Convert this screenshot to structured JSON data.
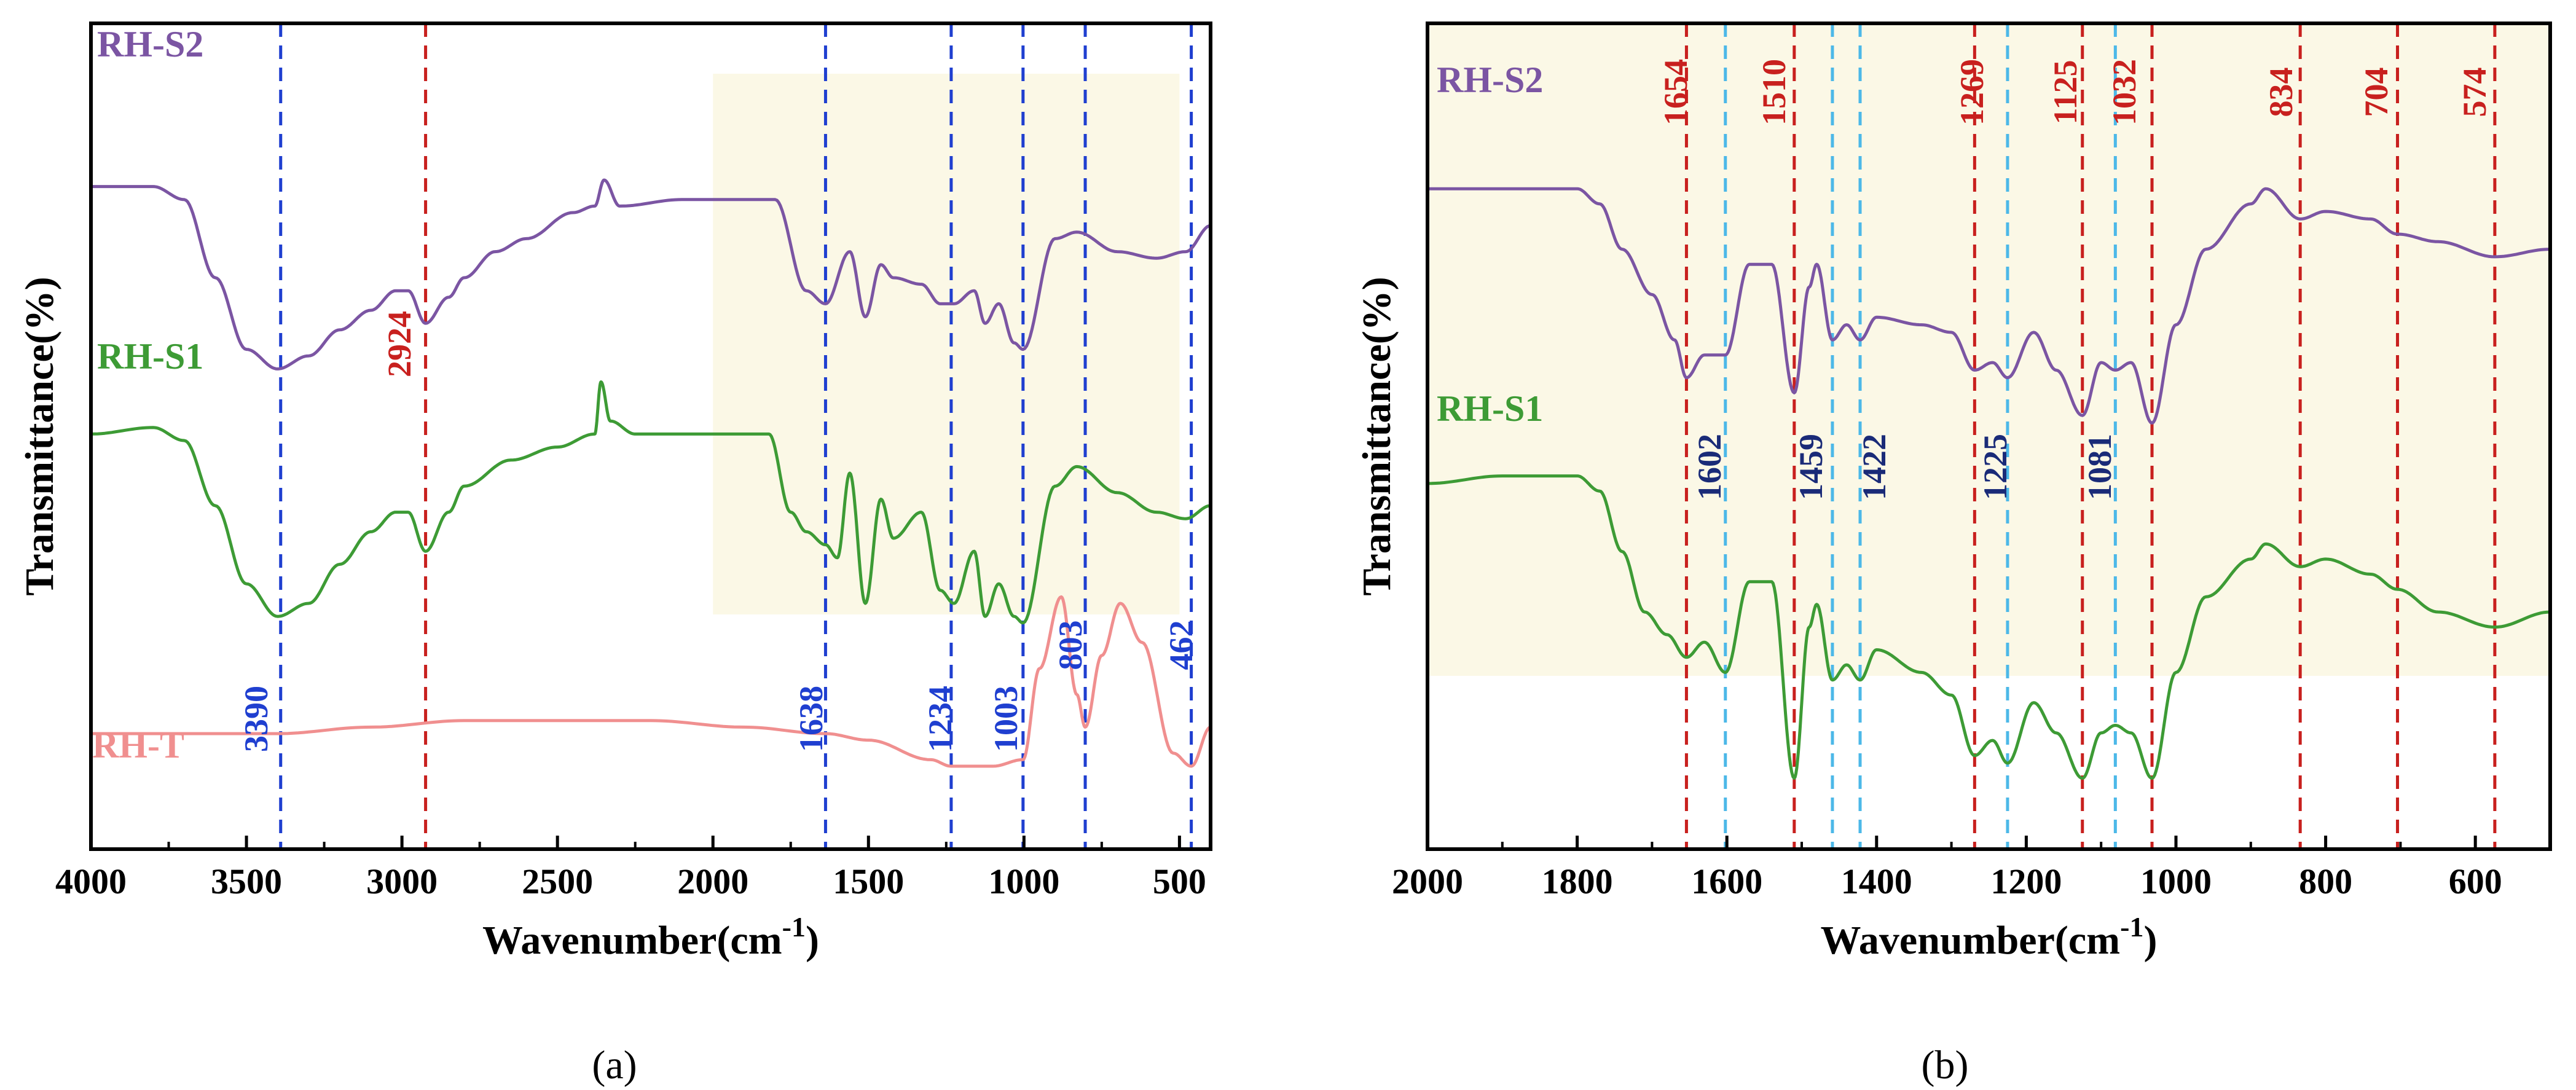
{
  "chart_data": [
    {
      "panel": "(a)",
      "type": "line",
      "xlabel": "Wavenumber(cm",
      "xlabel_sup": "-1",
      "xlabel_end": ")",
      "ylabel": "Transmittance(%)",
      "xlim": [
        4000,
        400
      ],
      "ticks": [
        "4000",
        "3500",
        "3000",
        "2500",
        "2000",
        "1500",
        "1000",
        "500"
      ],
      "tick_values": [
        4000,
        3500,
        3000,
        2500,
        2000,
        1500,
        1000,
        500
      ],
      "shaded_region": [
        2000,
        500
      ],
      "shade_color": "#fbf8e6",
      "series": [
        {
          "name": "RH-S2",
          "color": "#7b55a3",
          "points": [
            [
              4000,
              94
            ],
            [
              3800,
              94
            ],
            [
              3700,
              92
            ],
            [
              3600,
              80
            ],
            [
              3500,
              69
            ],
            [
              3400,
              66
            ],
            [
              3300,
              68
            ],
            [
              3200,
              72
            ],
            [
              3100,
              75
            ],
            [
              3020,
              78
            ],
            [
              2980,
              78
            ],
            [
              2924,
              73
            ],
            [
              2850,
              77
            ],
            [
              2800,
              80
            ],
            [
              2700,
              84
            ],
            [
              2600,
              86
            ],
            [
              2450,
              90
            ],
            [
              2380,
              91
            ],
            [
              2350,
              95
            ],
            [
              2300,
              91
            ],
            [
              2100,
              92
            ],
            [
              2000,
              92
            ],
            [
              1800,
              92
            ],
            [
              1700,
              78
            ],
            [
              1638,
              76
            ],
            [
              1560,
              84
            ],
            [
              1510,
              74
            ],
            [
              1460,
              82
            ],
            [
              1420,
              80
            ],
            [
              1330,
              79
            ],
            [
              1269,
              76
            ],
            [
              1225,
              76
            ],
            [
              1160,
              78
            ],
            [
              1125,
              73
            ],
            [
              1081,
              76
            ],
            [
              1032,
              70
            ],
            [
              1003,
              69
            ],
            [
              900,
              86
            ],
            [
              830,
              87
            ],
            [
              700,
              84
            ],
            [
              574,
              83
            ],
            [
              480,
              84
            ],
            [
              400,
              88
            ]
          ]
        },
        {
          "name": "RH-S1",
          "color": "#3d9b35",
          "points": [
            [
              4000,
              56
            ],
            [
              3800,
              57
            ],
            [
              3700,
              55
            ],
            [
              3600,
              45
            ],
            [
              3500,
              33
            ],
            [
              3400,
              28
            ],
            [
              3300,
              30
            ],
            [
              3200,
              36
            ],
            [
              3100,
              41
            ],
            [
              3020,
              44
            ],
            [
              2980,
              44
            ],
            [
              2924,
              38
            ],
            [
              2850,
              44
            ],
            [
              2800,
              48
            ],
            [
              2650,
              52
            ],
            [
              2500,
              54
            ],
            [
              2380,
              56
            ],
            [
              2360,
              64
            ],
            [
              2330,
              58
            ],
            [
              2250,
              56
            ],
            [
              2000,
              56
            ],
            [
              1820,
              56
            ],
            [
              1750,
              44
            ],
            [
              1700,
              41
            ],
            [
              1638,
              39
            ],
            [
              1600,
              37
            ],
            [
              1560,
              50
            ],
            [
              1510,
              30
            ],
            [
              1460,
              46
            ],
            [
              1420,
              40
            ],
            [
              1330,
              44
            ],
            [
              1269,
              32
            ],
            [
              1225,
              30
            ],
            [
              1160,
              38
            ],
            [
              1125,
              28
            ],
            [
              1081,
              33
            ],
            [
              1032,
              28
            ],
            [
              1003,
              27
            ],
            [
              900,
              48
            ],
            [
              830,
              51
            ],
            [
              700,
              47
            ],
            [
              574,
              44
            ],
            [
              480,
              43
            ],
            [
              400,
              45
            ]
          ]
        },
        {
          "name": "RH-T",
          "color": "#f08f8f",
          "points": [
            [
              4000,
              10
            ],
            [
              3700,
              10
            ],
            [
              3400,
              10
            ],
            [
              3100,
              11
            ],
            [
              2800,
              12
            ],
            [
              2500,
              12
            ],
            [
              2200,
              12
            ],
            [
              1900,
              11
            ],
            [
              1638,
              10
            ],
            [
              1500,
              9
            ],
            [
              1300,
              6
            ],
            [
              1234,
              5
            ],
            [
              1100,
              5
            ],
            [
              1003,
              6
            ],
            [
              950,
              20
            ],
            [
              880,
              31
            ],
            [
              830,
              16
            ],
            [
              803,
              11
            ],
            [
              750,
              22
            ],
            [
              690,
              30
            ],
            [
              620,
              24
            ],
            [
              520,
              7
            ],
            [
              462,
              5
            ],
            [
              400,
              11
            ]
          ]
        }
      ],
      "peaks_blue": [
        {
          "label": "3390",
          "x": 3390
        },
        {
          "label": "1638",
          "x": 1638
        },
        {
          "label": "1234",
          "x": 1234
        },
        {
          "label": "1003",
          "x": 1003
        },
        {
          "label": "803",
          "x": 803
        },
        {
          "label": "462",
          "x": 462
        }
      ],
      "peaks_red": [
        {
          "label": "2924",
          "x": 2924
        }
      ]
    },
    {
      "panel": "(b)",
      "type": "line",
      "xlabel": "Wavenumber(cm",
      "xlabel_sup": "-1",
      "xlabel_end": ")",
      "ylabel": "Transmittance(%)",
      "xlim": [
        2000,
        500
      ],
      "ticks": [
        "2000",
        "1800",
        "1600",
        "1400",
        "1200",
        "1000",
        "800",
        "600"
      ],
      "tick_values": [
        2000,
        1800,
        1600,
        1400,
        1200,
        1000,
        800,
        600
      ],
      "shaded_region": [
        2000,
        500
      ],
      "shade_color": "#fbf8e6",
      "series": [
        {
          "name": "RH-S2",
          "color": "#7b55a3",
          "points": [
            [
              2000,
              86
            ],
            [
              1900,
              86
            ],
            [
              1800,
              86
            ],
            [
              1770,
              84
            ],
            [
              1740,
              78
            ],
            [
              1700,
              72
            ],
            [
              1670,
              66
            ],
            [
              1654,
              61
            ],
            [
              1630,
              64
            ],
            [
              1602,
              64
            ],
            [
              1570,
              76
            ],
            [
              1540,
              76
            ],
            [
              1510,
              59
            ],
            [
              1490,
              73
            ],
            [
              1480,
              76
            ],
            [
              1459,
              66
            ],
            [
              1440,
              68
            ],
            [
              1422,
              66
            ],
            [
              1400,
              69
            ],
            [
              1340,
              68
            ],
            [
              1300,
              67
            ],
            [
              1269,
              62
            ],
            [
              1245,
              63
            ],
            [
              1225,
              61
            ],
            [
              1190,
              67
            ],
            [
              1160,
              62
            ],
            [
              1125,
              56
            ],
            [
              1100,
              63
            ],
            [
              1081,
              62
            ],
            [
              1060,
              63
            ],
            [
              1032,
              55
            ],
            [
              1000,
              68
            ],
            [
              960,
              78
            ],
            [
              900,
              84
            ],
            [
              880,
              86
            ],
            [
              834,
              82
            ],
            [
              800,
              83
            ],
            [
              740,
              82
            ],
            [
              704,
              80
            ],
            [
              650,
              79
            ],
            [
              574,
              77
            ],
            [
              500,
              78
            ]
          ]
        },
        {
          "name": "RH-S1",
          "color": "#3d9b35",
          "points": [
            [
              2000,
              47
            ],
            [
              1900,
              48
            ],
            [
              1850,
              48
            ],
            [
              1800,
              48
            ],
            [
              1770,
              46
            ],
            [
              1740,
              38
            ],
            [
              1710,
              30
            ],
            [
              1680,
              27
            ],
            [
              1654,
              24
            ],
            [
              1630,
              26
            ],
            [
              1602,
              22
            ],
            [
              1570,
              34
            ],
            [
              1540,
              34
            ],
            [
              1510,
              8
            ],
            [
              1490,
              28
            ],
            [
              1480,
              31
            ],
            [
              1459,
              21
            ],
            [
              1440,
              23
            ],
            [
              1422,
              21
            ],
            [
              1400,
              25
            ],
            [
              1340,
              22
            ],
            [
              1300,
              19
            ],
            [
              1269,
              11
            ],
            [
              1245,
              13
            ],
            [
              1225,
              10
            ],
            [
              1190,
              18
            ],
            [
              1160,
              14
            ],
            [
              1125,
              8
            ],
            [
              1100,
              14
            ],
            [
              1081,
              15
            ],
            [
              1060,
              14
            ],
            [
              1032,
              8
            ],
            [
              1000,
              22
            ],
            [
              960,
              32
            ],
            [
              900,
              37
            ],
            [
              880,
              39
            ],
            [
              834,
              36
            ],
            [
              800,
              37
            ],
            [
              740,
              35
            ],
            [
              704,
              33
            ],
            [
              650,
              30
            ],
            [
              574,
              28
            ],
            [
              500,
              30
            ]
          ]
        }
      ],
      "peaks_red": [
        {
          "label": "1654",
          "x": 1654
        },
        {
          "label": "1510",
          "x": 1510
        },
        {
          "label": "1269",
          "x": 1269
        },
        {
          "label": "1125",
          "x": 1125
        },
        {
          "label": "1032",
          "x": 1032
        },
        {
          "label": "834",
          "x": 834
        },
        {
          "label": "704",
          "x": 704
        },
        {
          "label": "574",
          "x": 574
        }
      ],
      "peaks_cyan": [
        {
          "label": "1602",
          "x": 1602
        },
        {
          "label": "1459",
          "x": 1459
        },
        {
          "label": "1422",
          "x": 1422
        },
        {
          "label": "1225",
          "x": 1225
        },
        {
          "label": "1081",
          "x": 1081
        }
      ]
    }
  ]
}
